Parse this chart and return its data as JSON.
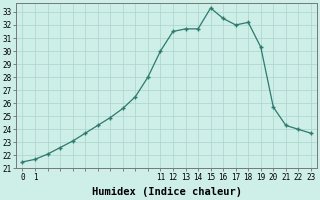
{
  "xlabel": "Humidex (Indice chaleur)",
  "x_values": [
    0,
    1,
    2,
    3,
    4,
    5,
    6,
    7,
    8,
    9,
    10,
    11,
    12,
    13,
    14,
    15,
    16,
    17,
    18,
    19,
    20,
    21,
    22,
    23
  ],
  "y_values": [
    21.5,
    21.7,
    22.1,
    22.6,
    23.1,
    23.7,
    24.3,
    24.9,
    25.6,
    26.5,
    28.0,
    30.0,
    31.5,
    31.7,
    31.7,
    33.3,
    32.5,
    32.0,
    32.2,
    30.3,
    25.7,
    24.3,
    24.0,
    23.7
  ],
  "line_color": "#2d7a6e",
  "marker": "+",
  "background_color": "#ceeee8",
  "grid_color": "#aad4cc",
  "ylim": [
    21,
    33.7
  ],
  "xlim": [
    -0.5,
    23.5
  ],
  "yticks": [
    21,
    22,
    23,
    24,
    25,
    26,
    27,
    28,
    29,
    30,
    31,
    32,
    33
  ],
  "xtick_positions": [
    0,
    1,
    11,
    12,
    13,
    14,
    15,
    16,
    17,
    18,
    19,
    20,
    21,
    22,
    23
  ],
  "xtick_labels": [
    "0",
    "1",
    "11",
    "12",
    "13",
    "14",
    "15",
    "16",
    "17",
    "18",
    "19",
    "20",
    "21",
    "22",
    "23"
  ],
  "tick_fontsize": 5.5,
  "xlabel_fontsize": 7.5
}
